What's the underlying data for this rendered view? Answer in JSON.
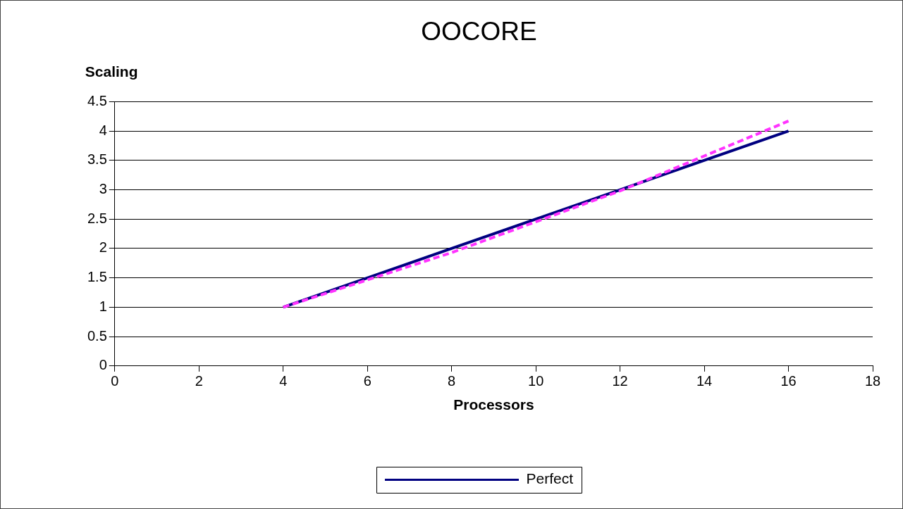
{
  "chart_data": {
    "type": "line",
    "title": "OOCORE",
    "xlabel": "Processors",
    "ylabel": "Scaling",
    "xlim": [
      0,
      18
    ],
    "xticks": [
      0,
      2,
      4,
      6,
      8,
      10,
      12,
      14,
      16,
      18
    ],
    "ylim": [
      0,
      4.5
    ],
    "yticks": [
      0,
      0.5,
      1,
      1.5,
      2,
      2.5,
      3,
      3.5,
      4,
      4.5
    ],
    "grid": "y",
    "legend": "bottom",
    "marker": "none",
    "series": [
      {
        "name": "Perfect",
        "color": "#000080",
        "line_style": "solid",
        "x": [
          4,
          8,
          12,
          16
        ],
        "values": [
          1,
          2,
          3,
          4
        ]
      },
      {
        "color": "#ff33ff",
        "line_style": "dashed",
        "x": [
          4,
          8,
          12,
          16
        ],
        "values": [
          1,
          1.93,
          2.98,
          4.17
        ]
      }
    ]
  }
}
